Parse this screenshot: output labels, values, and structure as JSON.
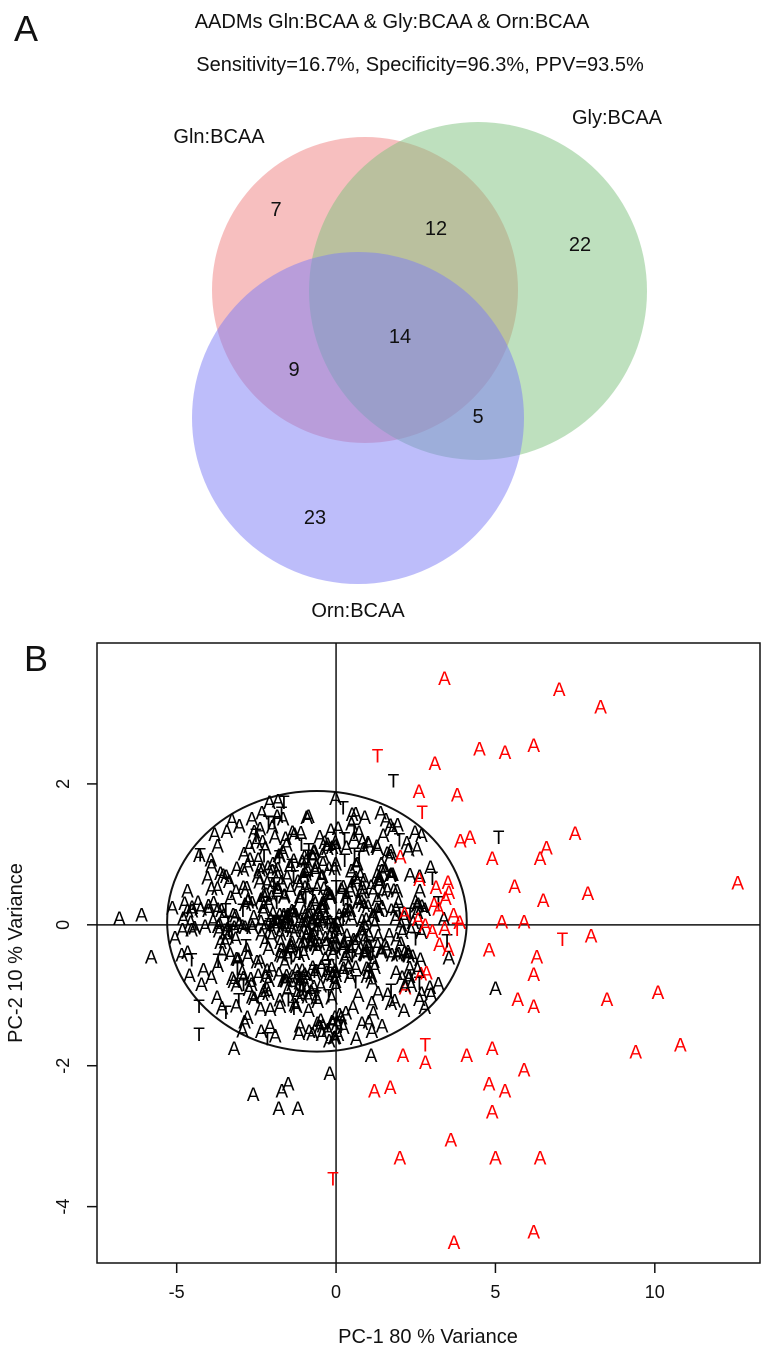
{
  "panel_a": {
    "letter": "A",
    "title": "AADMs Gln:BCAA & Gly:BCAA & Orn:BCAA",
    "subtitle": "Sensitivity=16.7%, Specificity=96.3%, PPV=93.5%",
    "sets": [
      {
        "name": "Gln:BCAA",
        "color": "#F08080"
      },
      {
        "name": "Gly:BCAA",
        "color": "#7DC17D"
      },
      {
        "name": "Orn:BCAA",
        "color": "#7B7BF5"
      }
    ],
    "regions": {
      "gln_only": "7",
      "gln_gly": "12",
      "gly_only": "22",
      "all_three": "14",
      "gln_orn": "9",
      "gly_orn": "5",
      "orn_only": "23"
    }
  },
  "panel_b": {
    "letter": "B",
    "xlabel": "PC-1 80 % Variance",
    "ylabel": "PC-2 10 % Variance",
    "colors": {
      "inside": "#000000",
      "outside": "#ff0000"
    }
  },
  "chart_data": [
    {
      "type": "venn",
      "title": "AADMs Gln:BCAA & Gly:BCAA & Orn:BCAA",
      "subtitle": "Sensitivity=16.7%, Specificity=96.3%, PPV=93.5%",
      "sets": [
        "Gln:BCAA",
        "Gly:BCAA",
        "Orn:BCAA"
      ],
      "regions": [
        {
          "sets": [
            "Gln:BCAA"
          ],
          "value": 7
        },
        {
          "sets": [
            "Gln:BCAA",
            "Gly:BCAA"
          ],
          "value": 12
        },
        {
          "sets": [
            "Gly:BCAA"
          ],
          "value": 22
        },
        {
          "sets": [
            "Gln:BCAA",
            "Gly:BCAA",
            "Orn:BCAA"
          ],
          "value": 14
        },
        {
          "sets": [
            "Gln:BCAA",
            "Orn:BCAA"
          ],
          "value": 9
        },
        {
          "sets": [
            "Gly:BCAA",
            "Orn:BCAA"
          ],
          "value": 5
        },
        {
          "sets": [
            "Orn:BCAA"
          ],
          "value": 23
        }
      ]
    },
    {
      "type": "scatter",
      "xlabel": "PC-1 80 % Variance",
      "ylabel": "PC-2 10 % Variance",
      "xlim": [
        -7.5,
        13.3
      ],
      "ylim": [
        -4.8,
        4.0
      ],
      "xticks": [
        -5,
        0,
        5,
        10
      ],
      "yticks": [
        -4,
        -2,
        0,
        2
      ],
      "reference_lines": {
        "x": 0,
        "y": 0
      },
      "ellipse": {
        "center": [
          -0.6,
          0.05
        ],
        "semi_axes": [
          4.7,
          1.85
        ]
      },
      "grid": false,
      "outliers": [
        {
          "x": 3.4,
          "y": 3.5,
          "label": "A",
          "color": "red"
        },
        {
          "x": 7.0,
          "y": 3.35,
          "label": "A",
          "color": "red"
        },
        {
          "x": 8.3,
          "y": 3.1,
          "label": "A",
          "color": "red"
        },
        {
          "x": 1.3,
          "y": 2.4,
          "label": "T",
          "color": "red"
        },
        {
          "x": 1.8,
          "y": 2.05,
          "label": "T",
          "color": "black"
        },
        {
          "x": 4.5,
          "y": 2.5,
          "label": "A",
          "color": "red"
        },
        {
          "x": 5.3,
          "y": 2.45,
          "label": "A",
          "color": "red"
        },
        {
          "x": 6.2,
          "y": 2.55,
          "label": "A",
          "color": "red"
        },
        {
          "x": 3.1,
          "y": 2.3,
          "label": "A",
          "color": "red"
        },
        {
          "x": 2.6,
          "y": 1.9,
          "label": "A",
          "color": "red"
        },
        {
          "x": 3.8,
          "y": 1.85,
          "label": "A",
          "color": "red"
        },
        {
          "x": 2.7,
          "y": 1.6,
          "label": "T",
          "color": "red"
        },
        {
          "x": 5.1,
          "y": 1.25,
          "label": "T",
          "color": "black"
        },
        {
          "x": 4.2,
          "y": 1.25,
          "label": "A",
          "color": "red"
        },
        {
          "x": 3.9,
          "y": 1.2,
          "label": "A",
          "color": "red"
        },
        {
          "x": 7.5,
          "y": 1.3,
          "label": "A",
          "color": "red"
        },
        {
          "x": 6.6,
          "y": 1.1,
          "label": "A",
          "color": "red"
        },
        {
          "x": 4.9,
          "y": 0.95,
          "label": "A",
          "color": "red"
        },
        {
          "x": 6.4,
          "y": 0.95,
          "label": "A",
          "color": "red"
        },
        {
          "x": 12.6,
          "y": 0.6,
          "label": "A",
          "color": "red"
        },
        {
          "x": 5.6,
          "y": 0.55,
          "label": "A",
          "color": "red"
        },
        {
          "x": 7.9,
          "y": 0.45,
          "label": "A",
          "color": "red"
        },
        {
          "x": 6.5,
          "y": 0.35,
          "label": "A",
          "color": "red"
        },
        {
          "x": 5.2,
          "y": 0.05,
          "label": "A",
          "color": "red"
        },
        {
          "x": 5.9,
          "y": 0.05,
          "label": "A",
          "color": "red"
        },
        {
          "x": 7.1,
          "y": -0.2,
          "label": "T",
          "color": "red"
        },
        {
          "x": 8.0,
          "y": -0.15,
          "label": "A",
          "color": "red"
        },
        {
          "x": 4.8,
          "y": -0.35,
          "label": "A",
          "color": "red"
        },
        {
          "x": 6.3,
          "y": -0.45,
          "label": "A",
          "color": "red"
        },
        {
          "x": 6.2,
          "y": -0.7,
          "label": "A",
          "color": "red"
        },
        {
          "x": 5.0,
          "y": -0.9,
          "label": "A",
          "color": "black"
        },
        {
          "x": 5.7,
          "y": -1.05,
          "label": "A",
          "color": "red"
        },
        {
          "x": 6.2,
          "y": -1.15,
          "label": "A",
          "color": "red"
        },
        {
          "x": 8.5,
          "y": -1.05,
          "label": "A",
          "color": "red"
        },
        {
          "x": 10.1,
          "y": -0.95,
          "label": "A",
          "color": "red"
        },
        {
          "x": 9.4,
          "y": -1.8,
          "label": "A",
          "color": "red"
        },
        {
          "x": 10.8,
          "y": -1.7,
          "label": "A",
          "color": "red"
        },
        {
          "x": 2.8,
          "y": -1.7,
          "label": "T",
          "color": "red"
        },
        {
          "x": 2.1,
          "y": -1.85,
          "label": "A",
          "color": "red"
        },
        {
          "x": 2.8,
          "y": -1.95,
          "label": "A",
          "color": "red"
        },
        {
          "x": 4.1,
          "y": -1.85,
          "label": "A",
          "color": "red"
        },
        {
          "x": 4.9,
          "y": -1.75,
          "label": "A",
          "color": "red"
        },
        {
          "x": 4.8,
          "y": -2.25,
          "label": "A",
          "color": "red"
        },
        {
          "x": 5.3,
          "y": -2.35,
          "label": "A",
          "color": "red"
        },
        {
          "x": 5.9,
          "y": -2.05,
          "label": "A",
          "color": "red"
        },
        {
          "x": 1.2,
          "y": -2.35,
          "label": "A",
          "color": "red"
        },
        {
          "x": 1.7,
          "y": -2.3,
          "label": "A",
          "color": "red"
        },
        {
          "x": 4.9,
          "y": -2.65,
          "label": "A",
          "color": "red"
        },
        {
          "x": 3.6,
          "y": -3.05,
          "label": "A",
          "color": "red"
        },
        {
          "x": 2.0,
          "y": -3.3,
          "label": "A",
          "color": "red"
        },
        {
          "x": 5.0,
          "y": -3.3,
          "label": "A",
          "color": "red"
        },
        {
          "x": 6.4,
          "y": -3.3,
          "label": "A",
          "color": "red"
        },
        {
          "x": -0.1,
          "y": -3.6,
          "label": "T",
          "color": "red"
        },
        {
          "x": 6.2,
          "y": -4.35,
          "label": "A",
          "color": "red"
        },
        {
          "x": 3.7,
          "y": -4.5,
          "label": "A",
          "color": "red"
        },
        {
          "x": -2.6,
          "y": -2.4,
          "label": "A",
          "color": "black"
        },
        {
          "x": -1.7,
          "y": -2.35,
          "label": "A",
          "color": "black"
        },
        {
          "x": -1.5,
          "y": -2.25,
          "label": "A",
          "color": "black"
        },
        {
          "x": -1.8,
          "y": -2.6,
          "label": "A",
          "color": "black"
        },
        {
          "x": -1.2,
          "y": -2.6,
          "label": "A",
          "color": "black"
        },
        {
          "x": -0.2,
          "y": -2.1,
          "label": "A",
          "color": "black"
        },
        {
          "x": 1.1,
          "y": -1.85,
          "label": "A",
          "color": "black"
        },
        {
          "x": -6.8,
          "y": 0.1,
          "label": "A",
          "color": "black"
        },
        {
          "x": -6.1,
          "y": 0.15,
          "label": "A",
          "color": "black"
        },
        {
          "x": -5.8,
          "y": -0.45,
          "label": "A",
          "color": "black"
        },
        {
          "x": -4.3,
          "y": -1.15,
          "label": "T",
          "color": "black"
        },
        {
          "x": -4.3,
          "y": -1.55,
          "label": "T",
          "color": "black"
        },
        {
          "x": -3.2,
          "y": -1.75,
          "label": "A",
          "color": "black"
        }
      ],
      "cluster": {
        "approx_count": 650,
        "inside_ellipse": true,
        "colors": [
          "black",
          "red"
        ],
        "labels": [
          "A",
          "T"
        ]
      }
    }
  ]
}
